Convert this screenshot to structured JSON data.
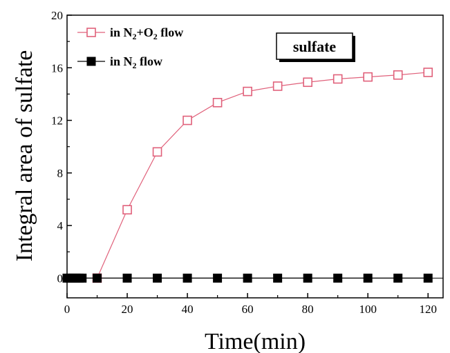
{
  "chart_data": {
    "type": "line",
    "xlabel": "Time(min)",
    "ylabel": "Integral area of sulfate",
    "xlim": [
      0,
      125
    ],
    "ylim": [
      -1.5,
      20
    ],
    "xticks": [
      0,
      20,
      40,
      60,
      80,
      100,
      120
    ],
    "yticks": [
      0,
      4,
      8,
      12,
      16,
      20
    ],
    "grid": false,
    "legend_position": "top-left",
    "annotation": "sulfate",
    "series": [
      {
        "name_parts": [
          "in N",
          "2",
          "+O",
          "2",
          " flow"
        ],
        "color": "#e0607a",
        "marker": "open-square",
        "x": [
          10,
          20,
          30,
          40,
          50,
          60,
          70,
          80,
          90,
          100,
          110,
          120
        ],
        "y": [
          0,
          5.2,
          9.6,
          12.0,
          13.35,
          14.2,
          14.6,
          14.9,
          15.15,
          15.3,
          15.45,
          15.65
        ]
      },
      {
        "name_parts": [
          "in N",
          "2",
          " flow"
        ],
        "color": "#000000",
        "marker": "filled-square",
        "x": [
          0,
          1,
          2,
          3,
          4,
          5,
          10,
          20,
          30,
          40,
          50,
          60,
          70,
          80,
          90,
          100,
          110,
          120
        ],
        "y": [
          0,
          0,
          0,
          0,
          0,
          0,
          0,
          0,
          0,
          0,
          0,
          0,
          0,
          0,
          0,
          0,
          0,
          0
        ]
      }
    ]
  }
}
